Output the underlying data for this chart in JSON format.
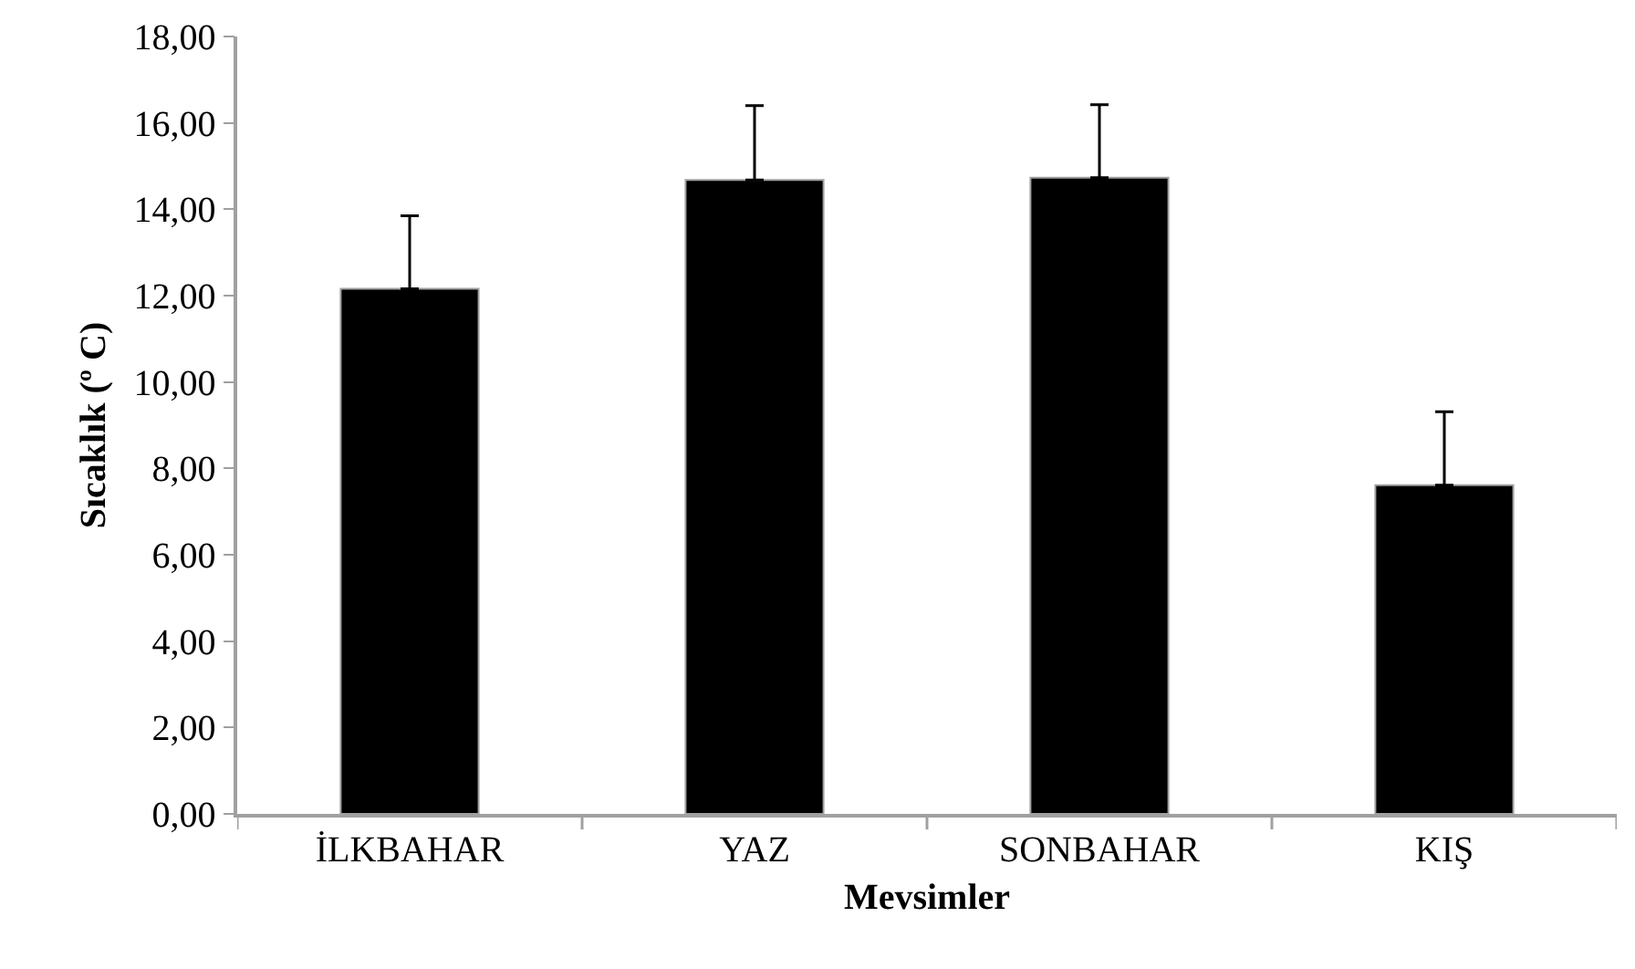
{
  "chart_data": {
    "type": "bar",
    "xlabel": "Mevsimler",
    "ylabel": "Sıcaklık (º C)",
    "categories": [
      "İLKBAHAR",
      "YAZ",
      "SONBAHAR",
      "KIŞ"
    ],
    "values": [
      12.16,
      14.68,
      14.73,
      7.61
    ],
    "errors": [
      [
        12.16,
        13.85
      ],
      [
        14.68,
        16.4
      ],
      [
        14.73,
        16.42
      ],
      [
        7.61,
        9.31
      ]
    ],
    "color": "#000000",
    "ylim": [
      0,
      18
    ],
    "yticks": [
      {
        "value": 0,
        "label": "0,00"
      },
      {
        "value": 2,
        "label": "2,00"
      },
      {
        "value": 4,
        "label": "4,00"
      },
      {
        "value": 6,
        "label": "6,00"
      },
      {
        "value": 8,
        "label": "8,00"
      },
      {
        "value": 10,
        "label": "10,00"
      },
      {
        "value": 12,
        "label": "12,00"
      },
      {
        "value": 14,
        "label": "14,00"
      },
      {
        "value": 16,
        "label": "16,00"
      },
      {
        "value": 18,
        "label": "18,00"
      }
    ]
  }
}
